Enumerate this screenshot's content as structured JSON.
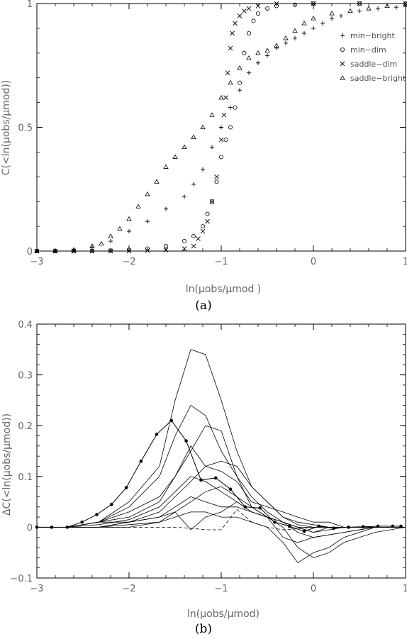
{
  "chart_data": [
    {
      "type": "scatter",
      "panel": "(a)",
      "caption": "(a)",
      "xlabel": "ln(μobs/μmod )",
      "ylabel": "C(<ln(μobs/μmod))",
      "xlim": [
        -3,
        1
      ],
      "ylim": [
        0,
        1
      ],
      "xticks": [
        -3,
        -2,
        -1,
        0,
        1
      ],
      "yticks": [
        0,
        0.5,
        1
      ],
      "xtick_labels": [
        "−3",
        "−2",
        "−1",
        "0",
        "1"
      ],
      "ytick_labels": [
        "0",
        "0.5",
        "1"
      ],
      "legend_position": "right",
      "series": [
        {
          "name": "min−bright",
          "marker": "plus",
          "points": [
            [
              -3.0,
              0
            ],
            [
              -2.8,
              0
            ],
            [
              -2.6,
              0.005
            ],
            [
              -2.4,
              0.015
            ],
            [
              -2.2,
              0.04
            ],
            [
              -2.0,
              0.08
            ],
            [
              -1.8,
              0.12
            ],
            [
              -1.6,
              0.17
            ],
            [
              -1.4,
              0.22
            ],
            [
              -1.3,
              0.27
            ],
            [
              -1.2,
              0.33
            ],
            [
              -1.1,
              0.42
            ],
            [
              -1.0,
              0.5
            ],
            [
              -0.9,
              0.58
            ],
            [
              -0.8,
              0.65
            ],
            [
              -0.7,
              0.72
            ],
            [
              -0.6,
              0.76
            ],
            [
              -0.5,
              0.79
            ],
            [
              -0.4,
              0.82
            ],
            [
              -0.3,
              0.84
            ],
            [
              -0.2,
              0.86
            ],
            [
              -0.1,
              0.88
            ],
            [
              0.0,
              0.9
            ],
            [
              0.1,
              0.92
            ],
            [
              0.2,
              0.94
            ],
            [
              0.3,
              0.95
            ],
            [
              0.5,
              0.97
            ],
            [
              0.7,
              0.98
            ],
            [
              0.9,
              0.985
            ],
            [
              1.0,
              0.99
            ]
          ]
        },
        {
          "name": "min−dim",
          "marker": "circle",
          "points": [
            [
              -3.0,
              0
            ],
            [
              -2.8,
              0
            ],
            [
              -2.6,
              0
            ],
            [
              -2.4,
              0
            ],
            [
              -2.2,
              0.002
            ],
            [
              -2.0,
              0.005
            ],
            [
              -1.8,
              0.01
            ],
            [
              -1.6,
              0.02
            ],
            [
              -1.4,
              0.04
            ],
            [
              -1.3,
              0.06
            ],
            [
              -1.2,
              0.1
            ],
            [
              -1.15,
              0.15
            ],
            [
              -1.1,
              0.2
            ],
            [
              -1.05,
              0.28
            ],
            [
              -1.0,
              0.38
            ],
            [
              -0.95,
              0.45
            ],
            [
              -0.9,
              0.5
            ],
            [
              -0.85,
              0.58
            ],
            [
              -0.8,
              0.68
            ],
            [
              -0.75,
              0.8
            ],
            [
              -0.7,
              0.88
            ],
            [
              -0.65,
              0.93
            ],
            [
              -0.6,
              0.96
            ],
            [
              -0.5,
              0.98
            ],
            [
              -0.4,
              0.99
            ],
            [
              -0.2,
              0.995
            ],
            [
              0.0,
              1.0
            ],
            [
              0.5,
              1.0
            ],
            [
              1.0,
              1.0
            ]
          ]
        },
        {
          "name": "saddle−dim",
          "marker": "x",
          "points": [
            [
              -3.0,
              0
            ],
            [
              -2.8,
              0
            ],
            [
              -2.6,
              0
            ],
            [
              -2.4,
              0
            ],
            [
              -2.2,
              0
            ],
            [
              -2.0,
              0
            ],
            [
              -1.8,
              0.002
            ],
            [
              -1.6,
              0.005
            ],
            [
              -1.4,
              0.01
            ],
            [
              -1.3,
              0.02
            ],
            [
              -1.25,
              0.05
            ],
            [
              -1.2,
              0.08
            ],
            [
              -1.15,
              0.12
            ],
            [
              -1.1,
              0.2
            ],
            [
              -1.05,
              0.3
            ],
            [
              -1.0,
              0.45
            ],
            [
              -0.97,
              0.55
            ],
            [
              -0.95,
              0.62
            ],
            [
              -0.93,
              0.72
            ],
            [
              -0.9,
              0.82
            ],
            [
              -0.88,
              0.88
            ],
            [
              -0.85,
              0.92
            ],
            [
              -0.8,
              0.95
            ],
            [
              -0.75,
              0.97
            ],
            [
              -0.7,
              0.98
            ],
            [
              -0.6,
              0.99
            ],
            [
              -0.4,
              1.0
            ],
            [
              0.0,
              1.0
            ],
            [
              0.5,
              1.0
            ],
            [
              1.0,
              1.0
            ]
          ]
        },
        {
          "name": "saddle−bright",
          "marker": "triangle",
          "points": [
            [
              -3.0,
              0
            ],
            [
              -2.8,
              0
            ],
            [
              -2.6,
              0.005
            ],
            [
              -2.4,
              0.02
            ],
            [
              -2.3,
              0.03
            ],
            [
              -2.2,
              0.06
            ],
            [
              -2.1,
              0.09
            ],
            [
              -2.0,
              0.13
            ],
            [
              -1.9,
              0.18
            ],
            [
              -1.8,
              0.23
            ],
            [
              -1.7,
              0.28
            ],
            [
              -1.6,
              0.34
            ],
            [
              -1.5,
              0.38
            ],
            [
              -1.4,
              0.42
            ],
            [
              -1.3,
              0.46
            ],
            [
              -1.2,
              0.5
            ],
            [
              -1.1,
              0.55
            ],
            [
              -1.0,
              0.62
            ],
            [
              -0.9,
              0.68
            ],
            [
              -0.8,
              0.74
            ],
            [
              -0.7,
              0.78
            ],
            [
              -0.6,
              0.8
            ],
            [
              -0.5,
              0.81
            ],
            [
              -0.4,
              0.83
            ],
            [
              -0.3,
              0.86
            ],
            [
              -0.2,
              0.89
            ],
            [
              -0.1,
              0.92
            ],
            [
              0.0,
              0.94
            ],
            [
              0.2,
              0.96
            ],
            [
              0.4,
              0.97
            ],
            [
              0.6,
              0.98
            ],
            [
              0.8,
              0.99
            ],
            [
              1.0,
              0.995
            ]
          ]
        }
      ]
    },
    {
      "type": "line",
      "panel": "(b)",
      "caption": "(b)",
      "xlabel": "ln(μobs/μmod)",
      "ylabel": "ΔC(<ln(μobs/μmod))",
      "xlim": [
        -3,
        1
      ],
      "ylim": [
        -0.1,
        0.4
      ],
      "xticks": [
        -3,
        -2,
        -1,
        0,
        1
      ],
      "yticks": [
        -0.1,
        0,
        0.1,
        0.2,
        0.3,
        0.4
      ],
      "xtick_labels": [
        "−3",
        "−2",
        "−1",
        "0",
        "1"
      ],
      "ytick_labels": [
        "−0.1",
        "0",
        "0.1",
        "0.2",
        "0.3",
        "0.4"
      ],
      "x": [
        -3.0,
        -2.67,
        -2.33,
        -2.0,
        -1.67,
        -1.5,
        -1.33,
        -1.17,
        -1.0,
        -0.83,
        -0.67,
        -0.5,
        -0.33,
        -0.17,
        0.0,
        0.17,
        0.33,
        0.5,
        0.67,
        1.0
      ],
      "series": [
        {
          "style": "solid",
          "values": [
            0,
            0,
            0.01,
            0.05,
            0.12,
            0.25,
            0.35,
            0.34,
            0.25,
            0.15,
            0.08,
            0.05,
            0.02,
            0.005,
            0,
            0,
            0,
            0,
            0,
            0
          ]
        },
        {
          "style": "solid",
          "values": [
            0,
            0,
            0.01,
            0.04,
            0.1,
            0.18,
            0.24,
            0.22,
            0.15,
            0.1,
            0.06,
            0.03,
            0.01,
            0,
            -0.01,
            0,
            0,
            0,
            0,
            0
          ]
        },
        {
          "style": "solid",
          "values": [
            0,
            0,
            0.01,
            0.03,
            0.06,
            0.1,
            0.15,
            0.2,
            0.19,
            0.1,
            0.04,
            0.02,
            0.01,
            0,
            0,
            0,
            0,
            0,
            0,
            0
          ]
        },
        {
          "style": "solid",
          "values": [
            0,
            0,
            0.01,
            0.02,
            0.05,
            0.1,
            0.16,
            0.12,
            0.11,
            0.09,
            0.05,
            0.04,
            0.03,
            0.02,
            0.01,
            0.01,
            0,
            0,
            0,
            0
          ]
        },
        {
          "style": "solid",
          "values": [
            0,
            0,
            0.01,
            0.01,
            0.03,
            0.06,
            0.09,
            0.12,
            0.13,
            0.12,
            0.08,
            0.05,
            0.02,
            0.01,
            0.005,
            0,
            0,
            0,
            0,
            0
          ]
        },
        {
          "style": "solid",
          "values": [
            0,
            0,
            0,
            0.01,
            0.02,
            0.04,
            0.06,
            0.05,
            0.04,
            0.04,
            0.03,
            0.02,
            0.01,
            -0.01,
            -0.02,
            -0.015,
            -0.01,
            -0.005,
            0,
            0
          ]
        },
        {
          "style": "solid",
          "values": [
            0,
            0,
            0,
            0,
            0.01,
            0.03,
            -0.005,
            0.02,
            0.03,
            0.05,
            0.03,
            0.02,
            0,
            -0.04,
            -0.06,
            -0.05,
            -0.03,
            -0.02,
            -0.01,
            0
          ]
        },
        {
          "style": "solid",
          "values": [
            0,
            0,
            0,
            0.01,
            0.02,
            0.03,
            0.05,
            0.07,
            0.08,
            0.06,
            0.04,
            0.02,
            -0.02,
            -0.03,
            -0.02,
            -0.015,
            -0.01,
            -0.005,
            0,
            0
          ]
        },
        {
          "style": "solid",
          "values": [
            0,
            0,
            0,
            0.005,
            0.01,
            0.02,
            0.03,
            0.03,
            0.02,
            0.02,
            0.01,
            0,
            -0.03,
            -0.07,
            -0.05,
            -0.04,
            -0.02,
            -0.01,
            0,
            0
          ]
        },
        {
          "style": "solid",
          "values": [
            0,
            0,
            0.005,
            0.015,
            0.04,
            0.07,
            0.1,
            0.09,
            0.07,
            0.05,
            0.03,
            0.02,
            0.01,
            0,
            -0.01,
            -0.005,
            0,
            0,
            0,
            0
          ]
        },
        {
          "style": "dashed",
          "values": [
            0,
            0,
            0,
            0,
            0,
            0,
            -0.002,
            -0.005,
            -0.005,
            0.035,
            0.01,
            0,
            -0.005,
            -0.003,
            0,
            0,
            0,
            0,
            0,
            0
          ]
        }
      ],
      "highlighted_series": {
        "style": "solid-with-dots",
        "points": [
          [
            -3.0,
            0
          ],
          [
            -2.84,
            0
          ],
          [
            -2.67,
            0
          ],
          [
            -2.51,
            0.01
          ],
          [
            -2.35,
            0.025
          ],
          [
            -2.19,
            0.045
          ],
          [
            -2.03,
            0.078
          ],
          [
            -1.87,
            0.13
          ],
          [
            -1.7,
            0.183
          ],
          [
            -1.54,
            0.21
          ],
          [
            -1.38,
            0.17
          ],
          [
            -1.22,
            0.093
          ],
          [
            -1.06,
            0.097
          ],
          [
            -0.9,
            0.075
          ],
          [
            -0.74,
            0.04
          ],
          [
            -0.58,
            0.038
          ],
          [
            -0.42,
            0.01
          ],
          [
            -0.26,
            0.002
          ],
          [
            -0.1,
            -0.008
          ],
          [
            0.06,
            0.002
          ],
          [
            0.22,
            -0.002
          ],
          [
            0.38,
            0.0
          ],
          [
            0.54,
            0.001
          ],
          [
            0.7,
            0.002
          ],
          [
            0.86,
            0.002
          ],
          [
            0.95,
            0.002
          ]
        ]
      }
    }
  ]
}
